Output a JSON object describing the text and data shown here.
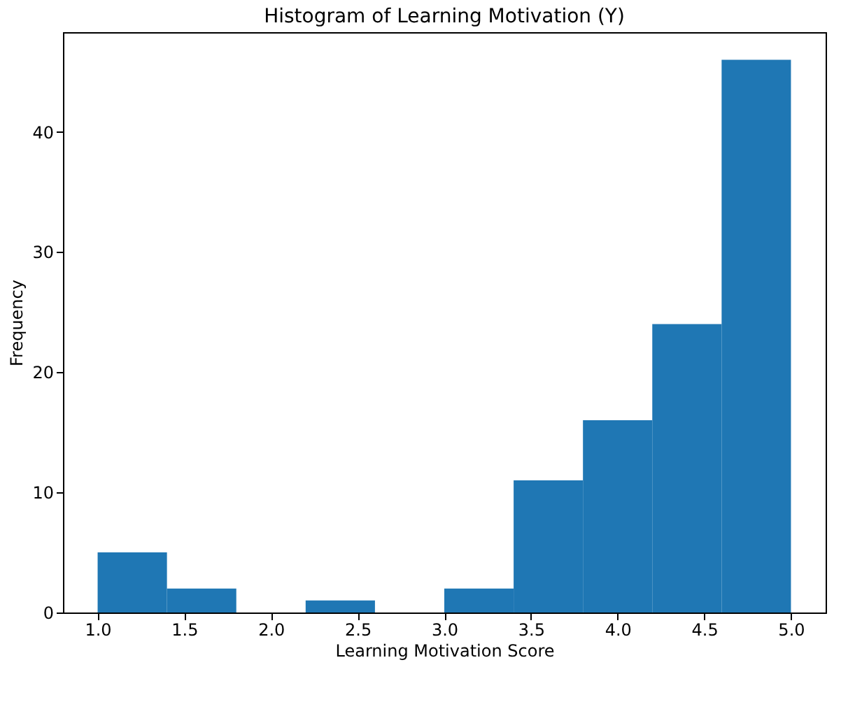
{
  "chart_data": {
    "type": "histogram",
    "title": "Histogram of Learning Motivation (Y)",
    "xlabel": "Learning Motivation Score",
    "ylabel": "Frequency",
    "bins": [
      1.0,
      1.4,
      1.8,
      2.2,
      2.6,
      3.0,
      3.4,
      3.8,
      4.2,
      4.6,
      5.0
    ],
    "values": [
      5,
      2,
      0,
      1,
      0,
      2,
      11,
      16,
      24,
      46
    ],
    "color": "#1f77b4",
    "xlim": [
      0.8,
      5.2
    ],
    "ylim": [
      0,
      48.3
    ],
    "xticks": [
      {
        "value": 1.0,
        "label": "1.0"
      },
      {
        "value": 1.5,
        "label": "1.5"
      },
      {
        "value": 2.0,
        "label": "2.0"
      },
      {
        "value": 2.5,
        "label": "2.5"
      },
      {
        "value": 3.0,
        "label": "3.0"
      },
      {
        "value": 3.5,
        "label": "3.5"
      },
      {
        "value": 4.0,
        "label": "4.0"
      },
      {
        "value": 4.5,
        "label": "4.5"
      },
      {
        "value": 5.0,
        "label": "5.0"
      }
    ],
    "yticks": [
      0,
      10,
      20,
      30,
      40
    ],
    "grid": false
  }
}
